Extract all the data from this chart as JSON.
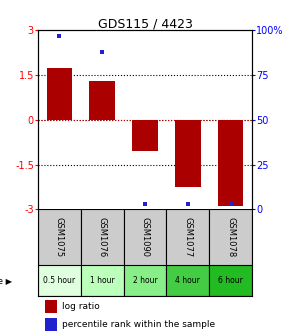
{
  "title": "GDS115 / 4423",
  "samples": [
    "GSM1075",
    "GSM1076",
    "GSM1090",
    "GSM1077",
    "GSM1078"
  ],
  "time_labels": [
    "0.5 hour",
    "1 hour",
    "2 hour",
    "4 hour",
    "6 hour"
  ],
  "log_ratios": [
    1.75,
    1.3,
    -1.05,
    -2.25,
    -2.9
  ],
  "percentile_ranks": [
    97,
    88,
    3,
    3,
    3
  ],
  "bar_color": "#aa0000",
  "dot_color": "#2222cc",
  "ylim": [
    -3,
    3
  ],
  "y2lim": [
    0,
    100
  ],
  "yticks": [
    -3,
    -1.5,
    0,
    1.5,
    3
  ],
  "y2ticks": [
    0,
    25,
    50,
    75,
    100
  ],
  "time_colors": [
    "#dfffdf",
    "#bbffbb",
    "#88ee88",
    "#44cc44",
    "#22bb22"
  ],
  "gsm_bg": "#cccccc",
  "legend_log_ratio": "log ratio",
  "legend_percentile": "percentile rank within the sample"
}
